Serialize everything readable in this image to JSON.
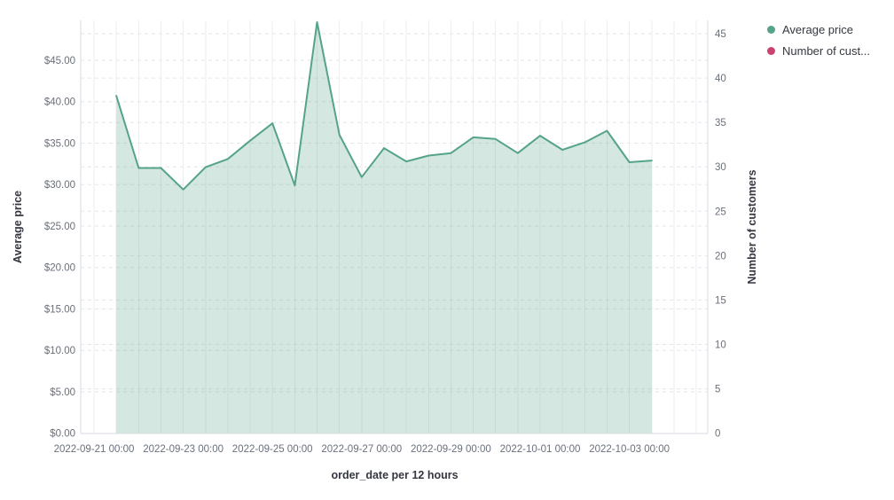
{
  "legend": {
    "items": [
      {
        "label": "Average price",
        "color": "#55a388",
        "series": "average-price"
      },
      {
        "label": "Number of cust...",
        "color": "#c9436f",
        "series": "number-of-customers"
      }
    ]
  },
  "chart_data": {
    "type": "area",
    "title": "",
    "legend_position": "top-right",
    "grid": true,
    "x_axis": {
      "title": "order_date per 12 hours",
      "interval": "12 hours",
      "tick_labels": [
        "2022-09-21 00:00",
        "2022-09-23 00:00",
        "2022-09-25 00:00",
        "2022-09-27 00:00",
        "2022-09-29 00:00",
        "2022-10-01 00:00",
        "2022-10-03 00:00"
      ]
    },
    "left_axis": {
      "title": "Average price",
      "unit": "USD",
      "min": 0,
      "max": 49.8,
      "tick_step": 5,
      "tick_labels": [
        "$0.00",
        "$5.00",
        "$10.00",
        "$15.00",
        "$20.00",
        "$25.00",
        "$30.00",
        "$35.00",
        "$40.00",
        "$45.00"
      ]
    },
    "right_axis": {
      "title": "Number of customers",
      "min": 0,
      "max": 46.5,
      "tick_step": 5,
      "tick_labels": [
        "0",
        "5",
        "10",
        "15",
        "20",
        "25",
        "30",
        "35",
        "40",
        "45"
      ]
    },
    "x": [
      "2022-09-21 12:00",
      "2022-09-22 00:00",
      "2022-09-22 12:00",
      "2022-09-23 00:00",
      "2022-09-23 12:00",
      "2022-09-24 00:00",
      "2022-09-24 12:00",
      "2022-09-25 00:00",
      "2022-09-25 12:00",
      "2022-09-26 00:00",
      "2022-09-26 12:00",
      "2022-09-27 00:00",
      "2022-09-27 12:00",
      "2022-09-28 00:00",
      "2022-09-28 12:00",
      "2022-09-29 00:00",
      "2022-09-29 12:00",
      "2022-09-30 00:00",
      "2022-09-30 12:00",
      "2022-10-01 00:00",
      "2022-10-01 12:00",
      "2022-10-02 00:00",
      "2022-10-02 12:00",
      "2022-10-03 00:00",
      "2022-10-03 12:00"
    ],
    "series": [
      {
        "name": "Average price",
        "axis": "left",
        "color": "#55a388",
        "fill_opacity": 0.25,
        "values": [
          40.7,
          32.0,
          32.0,
          29.4,
          32.1,
          33.1,
          35.3,
          37.4,
          29.9,
          49.6,
          36.0,
          30.9,
          34.4,
          32.8,
          33.5,
          33.8,
          35.7,
          35.5,
          33.8,
          35.9,
          34.2,
          35.1,
          36.5,
          32.7,
          32.9
        ]
      },
      {
        "name": "Number of customers",
        "axis": "right",
        "color": "#c9436f",
        "values": []
      }
    ]
  },
  "colors": {
    "tick_label": "#69707d",
    "axis_title": "#343741",
    "h_gridline": "#e4e6ea",
    "v_gridline": "#eeeef0",
    "plot_border": "#d9dbe0"
  }
}
